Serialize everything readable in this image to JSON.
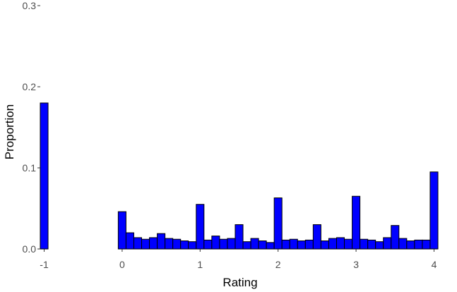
{
  "chart_data": {
    "type": "bar",
    "title": "",
    "xlabel": "Rating",
    "ylabel": "Proportion",
    "xlim": [
      -1.05,
      4.05
    ],
    "ylim": [
      0,
      0.3
    ],
    "x_ticks": [
      -1,
      0,
      1,
      2,
      3,
      4
    ],
    "x_tick_labels": [
      "-1",
      "0",
      "1",
      "2",
      "3",
      "4"
    ],
    "y_ticks": [
      0.0,
      0.1,
      0.2,
      0.3
    ],
    "y_tick_labels": [
      "0.0",
      "0.1",
      "0.2",
      "0.3"
    ],
    "bin_width": 0.1,
    "x": [
      -1.0,
      -0.9,
      -0.8,
      -0.7,
      -0.6,
      -0.5,
      -0.4,
      -0.3,
      -0.2,
      -0.1,
      0.0,
      0.1,
      0.2,
      0.3,
      0.4,
      0.5,
      0.6,
      0.7,
      0.8,
      0.9,
      1.0,
      1.1,
      1.2,
      1.3,
      1.4,
      1.5,
      1.6,
      1.7,
      1.8,
      1.9,
      2.0,
      2.1,
      2.2,
      2.3,
      2.4,
      2.5,
      2.6,
      2.7,
      2.8,
      2.9,
      3.0,
      3.1,
      3.2,
      3.3,
      3.4,
      3.5,
      3.6,
      3.7,
      3.8,
      3.9,
      4.0
    ],
    "values": [
      0.18,
      0,
      0,
      0,
      0,
      0,
      0,
      0,
      0,
      0,
      0.046,
      0.02,
      0.014,
      0.012,
      0.014,
      0.019,
      0.013,
      0.012,
      0.01,
      0.009,
      0.055,
      0.011,
      0.016,
      0.012,
      0.013,
      0.03,
      0.009,
      0.013,
      0.01,
      0.008,
      0.063,
      0.011,
      0.012,
      0.01,
      0.011,
      0.03,
      0.01,
      0.013,
      0.014,
      0.012,
      0.065,
      0.012,
      0.011,
      0.009,
      0.014,
      0.029,
      0.013,
      0.01,
      0.011,
      0.011,
      0.095
    ],
    "fill_color": "#0000ff",
    "stroke_color": "#000000",
    "grid": false,
    "legend": "none"
  }
}
